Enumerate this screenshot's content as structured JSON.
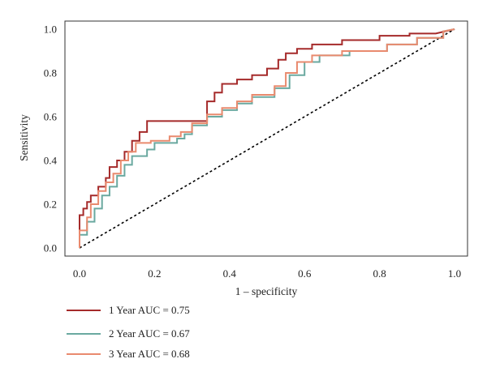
{
  "chart_data": {
    "type": "line",
    "title": "",
    "xlabel": "1 – specificity",
    "ylabel": "Sensitivity",
    "xlim": [
      0,
      1
    ],
    "ylim": [
      0,
      1
    ],
    "x_ticks": [
      "0.0",
      "0.2",
      "0.4",
      "0.6",
      "0.8",
      "1.0"
    ],
    "y_ticks": [
      "0.0",
      "0.2",
      "0.4",
      "0.6",
      "0.8",
      "1.0"
    ],
    "grid": false,
    "legend_position": "bottom-left, below plot",
    "reference_line": {
      "style": "dashed",
      "color": "#000000",
      "from": [
        0,
        0
      ],
      "to": [
        1,
        1
      ]
    },
    "series": [
      {
        "name": "1 Year AUC = 0.75",
        "color": "#A52A2A",
        "x": [
          0,
          0,
          0.01,
          0.01,
          0.02,
          0.02,
          0.03,
          0.03,
          0.05,
          0.05,
          0.07,
          0.07,
          0.08,
          0.08,
          0.1,
          0.1,
          0.12,
          0.12,
          0.14,
          0.14,
          0.16,
          0.16,
          0.18,
          0.18,
          0.2,
          0.2,
          0.34,
          0.34,
          0.36,
          0.36,
          0.38,
          0.38,
          0.42,
          0.42,
          0.46,
          0.46,
          0.5,
          0.5,
          0.53,
          0.53,
          0.55,
          0.55,
          0.58,
          0.58,
          0.62,
          0.62,
          0.7,
          0.7,
          0.8,
          0.8,
          0.88,
          0.88,
          0.95,
          0.95,
          1.0
        ],
        "y": [
          0,
          0.15,
          0.15,
          0.18,
          0.18,
          0.21,
          0.21,
          0.24,
          0.24,
          0.28,
          0.28,
          0.32,
          0.32,
          0.37,
          0.37,
          0.4,
          0.4,
          0.44,
          0.44,
          0.49,
          0.49,
          0.53,
          0.53,
          0.58,
          0.58,
          0.58,
          0.58,
          0.67,
          0.67,
          0.71,
          0.71,
          0.75,
          0.75,
          0.77,
          0.77,
          0.79,
          0.79,
          0.82,
          0.82,
          0.86,
          0.86,
          0.89,
          0.89,
          0.91,
          0.91,
          0.93,
          0.93,
          0.95,
          0.95,
          0.97,
          0.97,
          0.98,
          0.98,
          0.98,
          1.0
        ]
      },
      {
        "name": "2 Year AUC = 0.67",
        "color": "#6AA9A0",
        "x": [
          0,
          0,
          0.02,
          0.02,
          0.04,
          0.04,
          0.06,
          0.06,
          0.08,
          0.08,
          0.1,
          0.1,
          0.12,
          0.12,
          0.14,
          0.14,
          0.18,
          0.18,
          0.2,
          0.2,
          0.26,
          0.26,
          0.28,
          0.28,
          0.3,
          0.3,
          0.34,
          0.34,
          0.38,
          0.38,
          0.42,
          0.42,
          0.46,
          0.46,
          0.52,
          0.52,
          0.56,
          0.56,
          0.6,
          0.6,
          0.64,
          0.64,
          0.72,
          0.72,
          0.82,
          0.82,
          0.9,
          0.9,
          0.97,
          0.97,
          1.0
        ],
        "y": [
          0,
          0.06,
          0.06,
          0.12,
          0.12,
          0.18,
          0.18,
          0.24,
          0.24,
          0.28,
          0.28,
          0.33,
          0.33,
          0.38,
          0.38,
          0.42,
          0.42,
          0.45,
          0.45,
          0.48,
          0.48,
          0.5,
          0.5,
          0.52,
          0.52,
          0.56,
          0.56,
          0.6,
          0.6,
          0.63,
          0.63,
          0.66,
          0.66,
          0.69,
          0.69,
          0.73,
          0.73,
          0.79,
          0.79,
          0.85,
          0.85,
          0.88,
          0.88,
          0.9,
          0.9,
          0.93,
          0.93,
          0.96,
          0.96,
          0.99,
          1.0
        ]
      },
      {
        "name": "3 Year AUC = 0.68",
        "color": "#E98A6E",
        "x": [
          0,
          0,
          0.02,
          0.02,
          0.03,
          0.03,
          0.05,
          0.05,
          0.07,
          0.07,
          0.09,
          0.09,
          0.11,
          0.11,
          0.13,
          0.13,
          0.15,
          0.15,
          0.19,
          0.19,
          0.24,
          0.24,
          0.27,
          0.27,
          0.3,
          0.3,
          0.34,
          0.34,
          0.38,
          0.38,
          0.42,
          0.42,
          0.46,
          0.46,
          0.52,
          0.52,
          0.55,
          0.55,
          0.58,
          0.58,
          0.62,
          0.62,
          0.7,
          0.7,
          0.82,
          0.82,
          0.9,
          0.9,
          0.97,
          0.97,
          1.0
        ],
        "y": [
          0,
          0.08,
          0.08,
          0.14,
          0.14,
          0.2,
          0.2,
          0.26,
          0.26,
          0.3,
          0.3,
          0.34,
          0.34,
          0.4,
          0.4,
          0.44,
          0.44,
          0.48,
          0.48,
          0.49,
          0.49,
          0.51,
          0.51,
          0.53,
          0.53,
          0.57,
          0.57,
          0.61,
          0.61,
          0.64,
          0.64,
          0.67,
          0.67,
          0.7,
          0.7,
          0.74,
          0.74,
          0.8,
          0.8,
          0.85,
          0.85,
          0.88,
          0.88,
          0.9,
          0.9,
          0.93,
          0.93,
          0.96,
          0.96,
          0.99,
          1.0
        ]
      }
    ]
  }
}
